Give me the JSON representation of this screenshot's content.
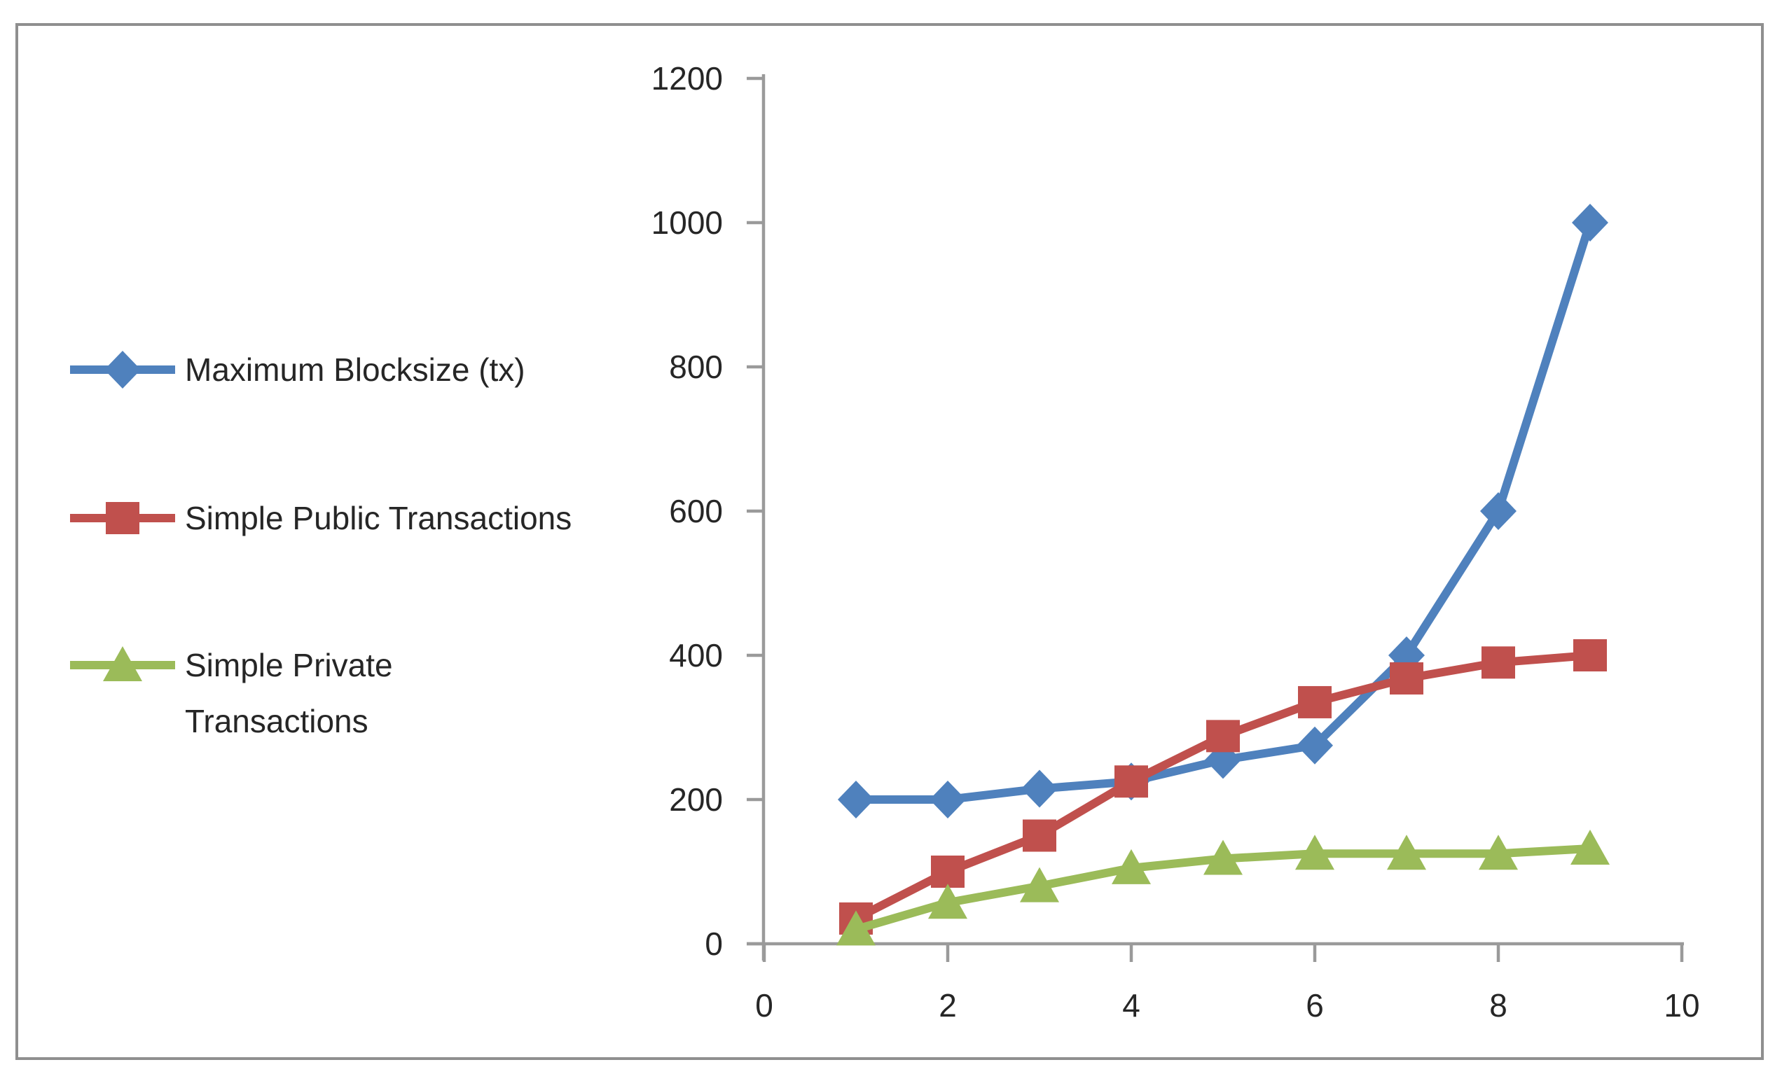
{
  "chart_data": {
    "type": "line",
    "title": "",
    "xlabel": "",
    "ylabel": "",
    "x": [
      1,
      2,
      3,
      4,
      5,
      6,
      7,
      8,
      9
    ],
    "xlim": [
      0,
      10
    ],
    "ylim": [
      0,
      1200
    ],
    "x_ticks": [
      0,
      2,
      4,
      6,
      8,
      10
    ],
    "x_tick_labels": [
      "0",
      "2",
      "4",
      "6",
      "8",
      "10"
    ],
    "y_ticks": [
      0,
      200,
      400,
      600,
      800,
      1000,
      1200
    ],
    "y_tick_labels": [
      "0",
      "200",
      "400",
      "600",
      "800",
      "1000",
      "1200"
    ],
    "grid": false,
    "legend_position": "left",
    "axis_color": "#9a9a9a",
    "text_color": "#262626",
    "border_color": "#8f8f8f",
    "series": [
      {
        "name": "Maximum Blocksize (tx)",
        "color": "#4F81BD",
        "marker": "diamond",
        "values": [
          200,
          200,
          215,
          225,
          255,
          275,
          400,
          600,
          1000
        ]
      },
      {
        "name": "Simple Public Transactions",
        "color": "#C0504D",
        "marker": "square",
        "values": [
          35,
          100,
          150,
          225,
          288,
          335,
          368,
          390,
          400
        ]
      },
      {
        "name": "Simple Private Transactions",
        "color": "#9BBB59",
        "marker": "triangle",
        "values": [
          20,
          57,
          80,
          105,
          118,
          125,
          125,
          125,
          132
        ]
      }
    ]
  }
}
